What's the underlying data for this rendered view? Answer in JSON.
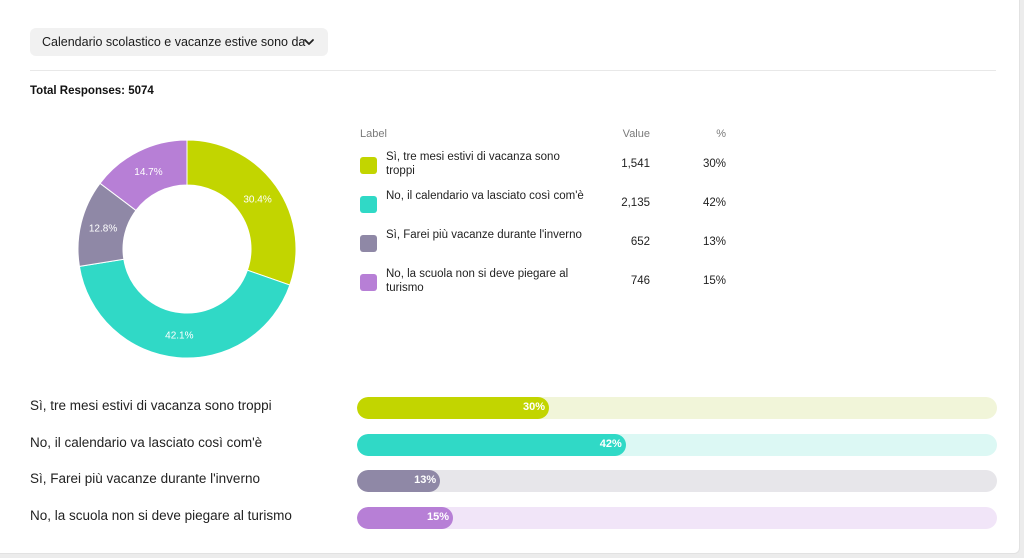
{
  "question": {
    "dropdown_label": "Calendario scolastico e vacanze estive sono da",
    "total_label": "Total Responses: 5074"
  },
  "legend": {
    "headers": {
      "label": "Label",
      "value": "Value",
      "percent": "%"
    }
  },
  "colors": {
    "series": [
      "#c2d500",
      "#30d9c6",
      "#8f88a6",
      "#b77fd6"
    ],
    "tracks": [
      "#f1f5d9",
      "#dcf8f4",
      "#e7e6ea",
      "#f1e5f8"
    ]
  },
  "chart_data": [
    {
      "type": "pie",
      "variant": "donut",
      "title": "Calendario scolastico e vacanze estive sono da",
      "total": 5074,
      "categories": [
        "Sì, tre mesi estivi di vacanza sono troppi",
        "No, il calendario va lasciato così com'è",
        "Sì, Farei più vacanze durante l'inverno",
        "No, la scuola non si deve piegare al turismo"
      ],
      "values": [
        1541,
        2135,
        652,
        746
      ],
      "percent_labels": [
        "30.4%",
        "42.1%",
        "12.8%",
        "14.7%"
      ],
      "legend_values": [
        "1,541",
        "2,135",
        "652",
        "746"
      ],
      "legend_percents": [
        "30%",
        "42%",
        "13%",
        "15%"
      ]
    },
    {
      "type": "bar",
      "orientation": "horizontal",
      "categories": [
        "Sì, tre mesi estivi di vacanza sono troppi",
        "No, il calendario va lasciato così com'è",
        "Sì, Farei più vacanze durante l'inverno",
        "No, la scuola non si deve piegare al turismo"
      ],
      "values": [
        30,
        42,
        13,
        15
      ],
      "value_labels": [
        "30%",
        "42%",
        "13%",
        "15%"
      ],
      "xlim": [
        0,
        100
      ]
    }
  ]
}
